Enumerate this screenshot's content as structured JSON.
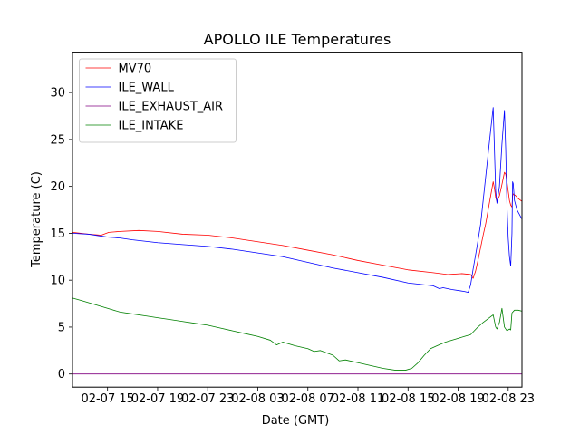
{
  "chart_data": {
    "type": "line",
    "title": "APOLLO ILE Temperatures",
    "xlabel": "Date (GMT)",
    "ylabel": "Temperature (C)",
    "xlim": [
      12.2,
      48.1
    ],
    "ylim": [
      -1.4,
      34.3
    ],
    "grid": false,
    "legend_position": "top-left",
    "x_unit": "hours since 2018-02-07 00:00 GMT",
    "x_ticks": [
      {
        "value": 15,
        "label": "02-07 15"
      },
      {
        "value": 19,
        "label": "02-07 19"
      },
      {
        "value": 23,
        "label": "02-07 23"
      },
      {
        "value": 27,
        "label": "02-08 03"
      },
      {
        "value": 31,
        "label": "02-08 07"
      },
      {
        "value": 35,
        "label": "02-08 11"
      },
      {
        "value": 39,
        "label": "02-08 15"
      },
      {
        "value": 43,
        "label": "02-08 19"
      },
      {
        "value": 47,
        "label": "02-08 23"
      }
    ],
    "y_ticks": [
      {
        "value": 0,
        "label": "0"
      },
      {
        "value": 5,
        "label": "5"
      },
      {
        "value": 10,
        "label": "10"
      },
      {
        "value": 15,
        "label": "15"
      },
      {
        "value": 20,
        "label": "20"
      },
      {
        "value": 25,
        "label": "25"
      },
      {
        "value": 30,
        "label": "30"
      }
    ],
    "series": [
      {
        "name": "MV70",
        "color": "#ff0000",
        "points": [
          [
            12.2,
            15.1
          ],
          [
            13.5,
            14.9
          ],
          [
            14.5,
            14.8
          ],
          [
            15.1,
            15.1
          ],
          [
            16.0,
            15.2
          ],
          [
            17.5,
            15.3
          ],
          [
            19.0,
            15.2
          ],
          [
            21.0,
            14.9
          ],
          [
            23.0,
            14.8
          ],
          [
            25.0,
            14.5
          ],
          [
            27.0,
            14.1
          ],
          [
            29.0,
            13.7
          ],
          [
            31.0,
            13.2
          ],
          [
            33.0,
            12.7
          ],
          [
            35.0,
            12.1
          ],
          [
            37.0,
            11.6
          ],
          [
            39.0,
            11.1
          ],
          [
            41.0,
            10.8
          ],
          [
            42.2,
            10.6
          ],
          [
            43.3,
            10.7
          ],
          [
            44.0,
            10.6
          ],
          [
            44.2,
            10.2
          ],
          [
            44.4,
            11.0
          ],
          [
            44.6,
            12.2
          ],
          [
            44.8,
            13.5
          ],
          [
            45.0,
            14.8
          ],
          [
            45.2,
            16.0
          ],
          [
            45.4,
            17.5
          ],
          [
            45.6,
            19.0
          ],
          [
            45.8,
            20.5
          ],
          [
            45.9,
            19.8
          ],
          [
            46.0,
            18.8
          ],
          [
            46.1,
            18.4
          ],
          [
            46.3,
            19.0
          ],
          [
            46.5,
            20.2
          ],
          [
            46.7,
            21.5
          ],
          [
            46.8,
            21.3
          ],
          [
            46.9,
            20.5
          ],
          [
            47.0,
            19.5
          ],
          [
            47.1,
            18.5
          ],
          [
            47.2,
            18.0
          ],
          [
            47.3,
            17.8
          ],
          [
            47.35,
            19.0
          ],
          [
            47.4,
            19.2
          ],
          [
            47.6,
            19.0
          ],
          [
            47.8,
            18.7
          ],
          [
            48.1,
            18.4
          ]
        ]
      },
      {
        "name": "ILE_WALL",
        "color": "#0000ff",
        "points": [
          [
            12.2,
            15.0
          ],
          [
            13.5,
            14.9
          ],
          [
            15.0,
            14.6
          ],
          [
            16.0,
            14.5
          ],
          [
            17.0,
            14.3
          ],
          [
            19.0,
            14.0
          ],
          [
            21.0,
            13.8
          ],
          [
            23.0,
            13.6
          ],
          [
            25.0,
            13.3
          ],
          [
            27.0,
            12.9
          ],
          [
            29.0,
            12.5
          ],
          [
            31.0,
            11.9
          ],
          [
            33.0,
            11.3
          ],
          [
            35.0,
            10.8
          ],
          [
            37.0,
            10.3
          ],
          [
            39.0,
            9.7
          ],
          [
            41.0,
            9.4
          ],
          [
            41.5,
            9.1
          ],
          [
            41.8,
            9.2
          ],
          [
            42.5,
            9.0
          ],
          [
            43.5,
            8.8
          ],
          [
            43.8,
            8.7
          ],
          [
            44.0,
            9.5
          ],
          [
            44.2,
            11.2
          ],
          [
            44.5,
            13.5
          ],
          [
            44.8,
            16.0
          ],
          [
            45.0,
            18.5
          ],
          [
            45.2,
            21.0
          ],
          [
            45.4,
            23.5
          ],
          [
            45.6,
            26.0
          ],
          [
            45.8,
            28.4
          ],
          [
            45.9,
            24.0
          ],
          [
            46.0,
            19.5
          ],
          [
            46.1,
            18.2
          ],
          [
            46.3,
            20.0
          ],
          [
            46.5,
            24.5
          ],
          [
            46.7,
            28.1
          ],
          [
            46.8,
            24.0
          ],
          [
            46.9,
            18.0
          ],
          [
            47.0,
            14.5
          ],
          [
            47.1,
            12.5
          ],
          [
            47.2,
            11.5
          ],
          [
            47.3,
            15.0
          ],
          [
            47.35,
            20.5
          ],
          [
            47.4,
            20.3
          ],
          [
            47.5,
            18.5
          ],
          [
            47.7,
            17.5
          ],
          [
            47.9,
            17.0
          ],
          [
            48.1,
            16.5
          ]
        ]
      },
      {
        "name": "ILE_EXHAUST_AIR",
        "color": "#800080",
        "points": [
          [
            12.2,
            0.0
          ],
          [
            48.1,
            0.0
          ]
        ]
      },
      {
        "name": "ILE_INTAKE",
        "color": "#008000",
        "points": [
          [
            12.2,
            8.1
          ],
          [
            13.0,
            7.8
          ],
          [
            14.0,
            7.4
          ],
          [
            15.0,
            7.0
          ],
          [
            16.0,
            6.6
          ],
          [
            17.0,
            6.4
          ],
          [
            18.0,
            6.2
          ],
          [
            19.0,
            6.0
          ],
          [
            20.0,
            5.8
          ],
          [
            21.0,
            5.6
          ],
          [
            22.0,
            5.4
          ],
          [
            23.0,
            5.2
          ],
          [
            24.0,
            4.9
          ],
          [
            25.0,
            4.6
          ],
          [
            26.0,
            4.3
          ],
          [
            27.0,
            4.0
          ],
          [
            28.0,
            3.6
          ],
          [
            28.5,
            3.1
          ],
          [
            29.0,
            3.4
          ],
          [
            30.0,
            3.0
          ],
          [
            31.0,
            2.7
          ],
          [
            31.5,
            2.4
          ],
          [
            32.0,
            2.5
          ],
          [
            33.0,
            2.0
          ],
          [
            33.5,
            1.4
          ],
          [
            34.0,
            1.5
          ],
          [
            35.0,
            1.2
          ],
          [
            36.0,
            0.9
          ],
          [
            37.0,
            0.6
          ],
          [
            38.0,
            0.4
          ],
          [
            38.8,
            0.4
          ],
          [
            39.3,
            0.6
          ],
          [
            39.8,
            1.2
          ],
          [
            40.3,
            2.0
          ],
          [
            40.8,
            2.7
          ],
          [
            41.3,
            3.0
          ],
          [
            42.0,
            3.4
          ],
          [
            43.0,
            3.8
          ],
          [
            43.5,
            4.0
          ],
          [
            44.0,
            4.2
          ],
          [
            44.5,
            4.9
          ],
          [
            45.0,
            5.5
          ],
          [
            45.5,
            6.0
          ],
          [
            45.8,
            6.3
          ],
          [
            46.0,
            5.0
          ],
          [
            46.1,
            4.8
          ],
          [
            46.3,
            5.5
          ],
          [
            46.5,
            7.0
          ],
          [
            46.7,
            5.0
          ],
          [
            46.9,
            4.6
          ],
          [
            47.1,
            4.8
          ],
          [
            47.2,
            4.7
          ],
          [
            47.3,
            6.5
          ],
          [
            47.5,
            6.8
          ],
          [
            47.8,
            6.8
          ],
          [
            48.1,
            6.7
          ]
        ]
      }
    ]
  }
}
